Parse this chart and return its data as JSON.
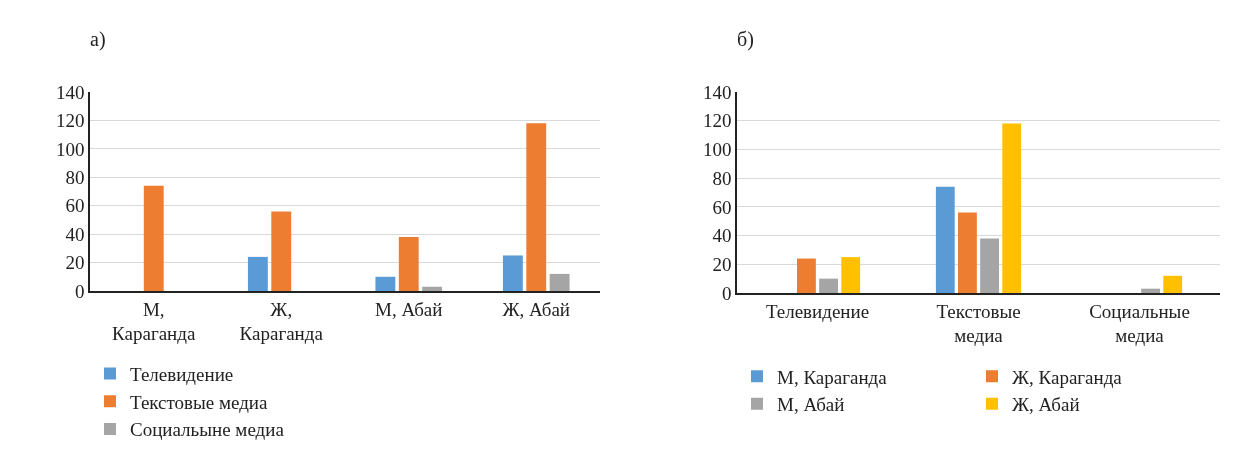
{
  "chart_data": [
    {
      "type": "bar",
      "title": "а)",
      "categories": [
        "М, Караганда",
        "Ж, Караганда",
        "М, Абай",
        "Ж, Абай"
      ],
      "series": [
        {
          "name": "Телевидение",
          "color": "#5b9bd5",
          "values": [
            0,
            24,
            10,
            25
          ]
        },
        {
          "name": "Текстовые медиа",
          "color": "#ed7d31",
          "values": [
            74,
            56,
            38,
            118
          ]
        },
        {
          "name": "Социальыне медиа",
          "color": "#a5a5a5",
          "values": [
            0,
            0,
            3,
            12
          ]
        }
      ],
      "ylim": [
        0,
        140
      ],
      "yticks": [
        0,
        20,
        40,
        60,
        80,
        100,
        120,
        140
      ],
      "grid": "y",
      "legend": "bottom"
    },
    {
      "type": "bar",
      "title": "б)",
      "categories": [
        "Телевидение",
        "Текстовые медиа",
        "Социальные медиа"
      ],
      "series": [
        {
          "name": "М, Караганда",
          "color": "#5b9bd5",
          "values": [
            0,
            74,
            0
          ]
        },
        {
          "name": "Ж, Караганда",
          "color": "#ed7d31",
          "values": [
            24,
            56,
            0
          ]
        },
        {
          "name": "М, Абай",
          "color": "#a5a5a5",
          "values": [
            10,
            38,
            3
          ]
        },
        {
          "name": "Ж, Абай",
          "color": "#ffc000",
          "values": [
            25,
            118,
            12
          ]
        }
      ],
      "ylim": [
        0,
        140
      ],
      "yticks": [
        0,
        20,
        40,
        60,
        80,
        100,
        120,
        140
      ],
      "grid": "y",
      "legend": "bottom"
    }
  ]
}
